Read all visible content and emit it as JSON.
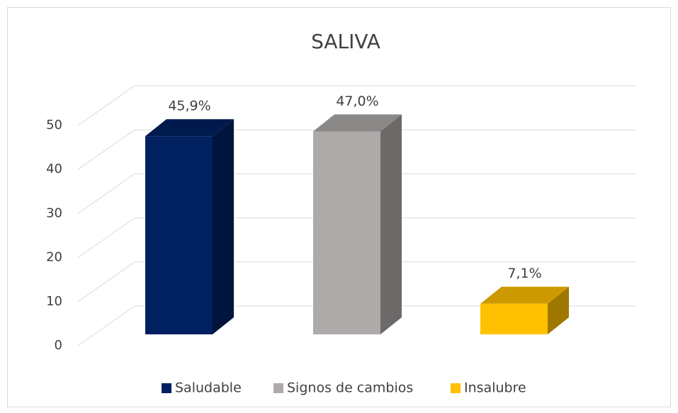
{
  "chart_data": {
    "type": "bar3d",
    "title": "SALIVA",
    "categories": [
      null
    ],
    "series": [
      {
        "name": "Saludable",
        "color": "#002060",
        "values": [
          45.9
        ],
        "value_labels": [
          "45,9%"
        ]
      },
      {
        "name": "Signos de cambios",
        "color": "#aeaaaa",
        "values": [
          47.0
        ],
        "value_labels": [
          "47,0%"
        ]
      },
      {
        "name": "Insalubre",
        "color": "#ffc000",
        "values": [
          7.1
        ],
        "value_labels": [
          "7,1%"
        ]
      }
    ],
    "ylim": [
      0,
      50
    ],
    "yticks": [
      0,
      10,
      20,
      30,
      40,
      50
    ],
    "grid": true,
    "legend": "bottom"
  }
}
